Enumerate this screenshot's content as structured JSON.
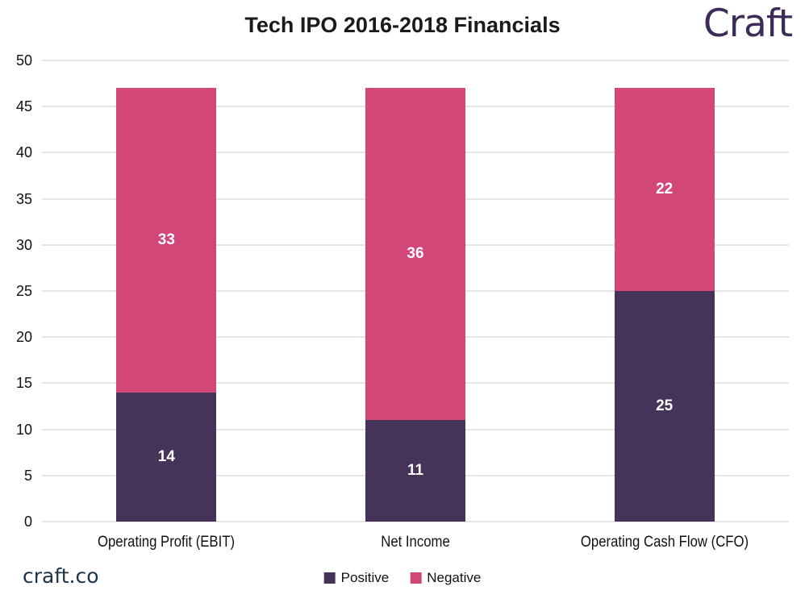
{
  "header": {
    "title": "Tech IPO 2016-2018 Financials",
    "logo": "Craft"
  },
  "footer": {
    "site": "craft.co"
  },
  "colors": {
    "positive": "#463359",
    "negative": "#d34678",
    "gridline": "#e5e5e5",
    "segment_label": "#ffffff",
    "title_text": "#1a1a1a",
    "logo_text": "#3d2b57",
    "site_text": "#1d3345"
  },
  "chart_data": {
    "type": "bar",
    "stacked": true,
    "title": "Tech IPO 2016-2018 Financials",
    "categories": [
      "Operating Profit (EBIT)",
      "Net Income",
      "Operating Cash Flow (CFO)"
    ],
    "series": [
      {
        "name": "Positive",
        "color": "#463359",
        "values": [
          14,
          11,
          25
        ]
      },
      {
        "name": "Negative",
        "color": "#d34678",
        "values": [
          33,
          36,
          22
        ]
      }
    ],
    "totals": [
      47,
      47,
      47
    ],
    "xlabel": "",
    "ylabel": "",
    "ylim": [
      0,
      50
    ],
    "ytick_step": 5,
    "yticks": [
      0,
      5,
      10,
      15,
      20,
      25,
      30,
      35,
      40,
      45,
      50
    ],
    "grid": true,
    "legend_position": "bottom",
    "segment_labels_shown": true
  }
}
